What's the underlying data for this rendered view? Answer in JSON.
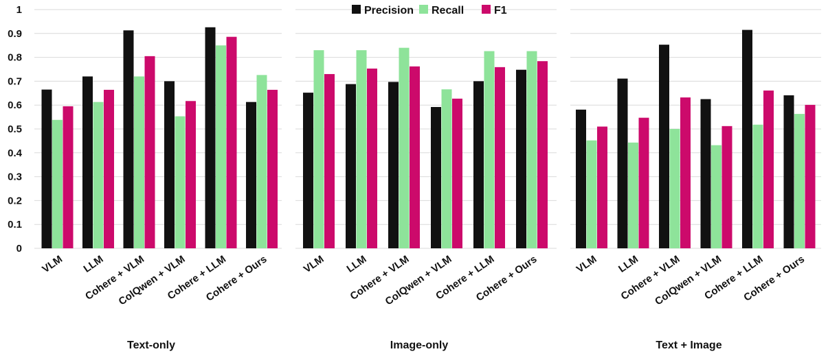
{
  "chart_data": {
    "type": "bar",
    "ylim": [
      0,
      1
    ],
    "yticks": [
      "0",
      "0.1",
      "0.2",
      "0.3",
      "0.4",
      "0.5",
      "0.6",
      "0.7",
      "0.8",
      "0.9",
      "1"
    ],
    "grid": true,
    "legend_position": "top-center",
    "series_names": [
      "Precision",
      "Recall",
      "F1"
    ],
    "colors": [
      "#111111",
      "#8ee39a",
      "#cc0a6b"
    ],
    "panels": [
      {
        "title": "Text-only",
        "categories": [
          "VLM",
          "LLM",
          "Cohere + VLM",
          "ColQwen + VLM",
          "Cohere + LLM",
          "Cohere + Ours"
        ],
        "series": [
          {
            "name": "Precision",
            "values": [
              0.665,
              0.72,
              0.913,
              0.7,
              0.926,
              0.613
            ]
          },
          {
            "name": "Recall",
            "values": [
              0.538,
              0.613,
              0.72,
              0.553,
              0.85,
              0.726
            ]
          },
          {
            "name": "F1",
            "values": [
              0.595,
              0.664,
              0.805,
              0.617,
              0.886,
              0.664
            ]
          }
        ]
      },
      {
        "title": "Image-only",
        "categories": [
          "VLM",
          "LLM",
          "Cohere + VLM",
          "ColQwen + VLM",
          "Cohere + LLM",
          "Cohere + Ours"
        ],
        "series": [
          {
            "name": "Precision",
            "values": [
              0.652,
              0.688,
              0.697,
              0.592,
              0.7,
              0.748
            ]
          },
          {
            "name": "Recall",
            "values": [
              0.83,
              0.83,
              0.84,
              0.666,
              0.826,
              0.826
            ]
          },
          {
            "name": "F1",
            "values": [
              0.73,
              0.753,
              0.762,
              0.627,
              0.759,
              0.784
            ]
          }
        ]
      },
      {
        "title": "Text + Image",
        "categories": [
          "VLM",
          "LLM",
          "Cohere + VLM",
          "ColQwen + VLM",
          "Cohere + LLM",
          "Cohere + Ours"
        ],
        "series": [
          {
            "name": "Precision",
            "values": [
              0.581,
              0.711,
              0.853,
              0.625,
              0.915,
              0.641
            ]
          },
          {
            "name": "Recall",
            "values": [
              0.452,
              0.443,
              0.5,
              0.432,
              0.518,
              0.563
            ]
          },
          {
            "name": "F1",
            "values": [
              0.51,
              0.547,
              0.632,
              0.512,
              0.661,
              0.601
            ]
          }
        ]
      }
    ]
  }
}
